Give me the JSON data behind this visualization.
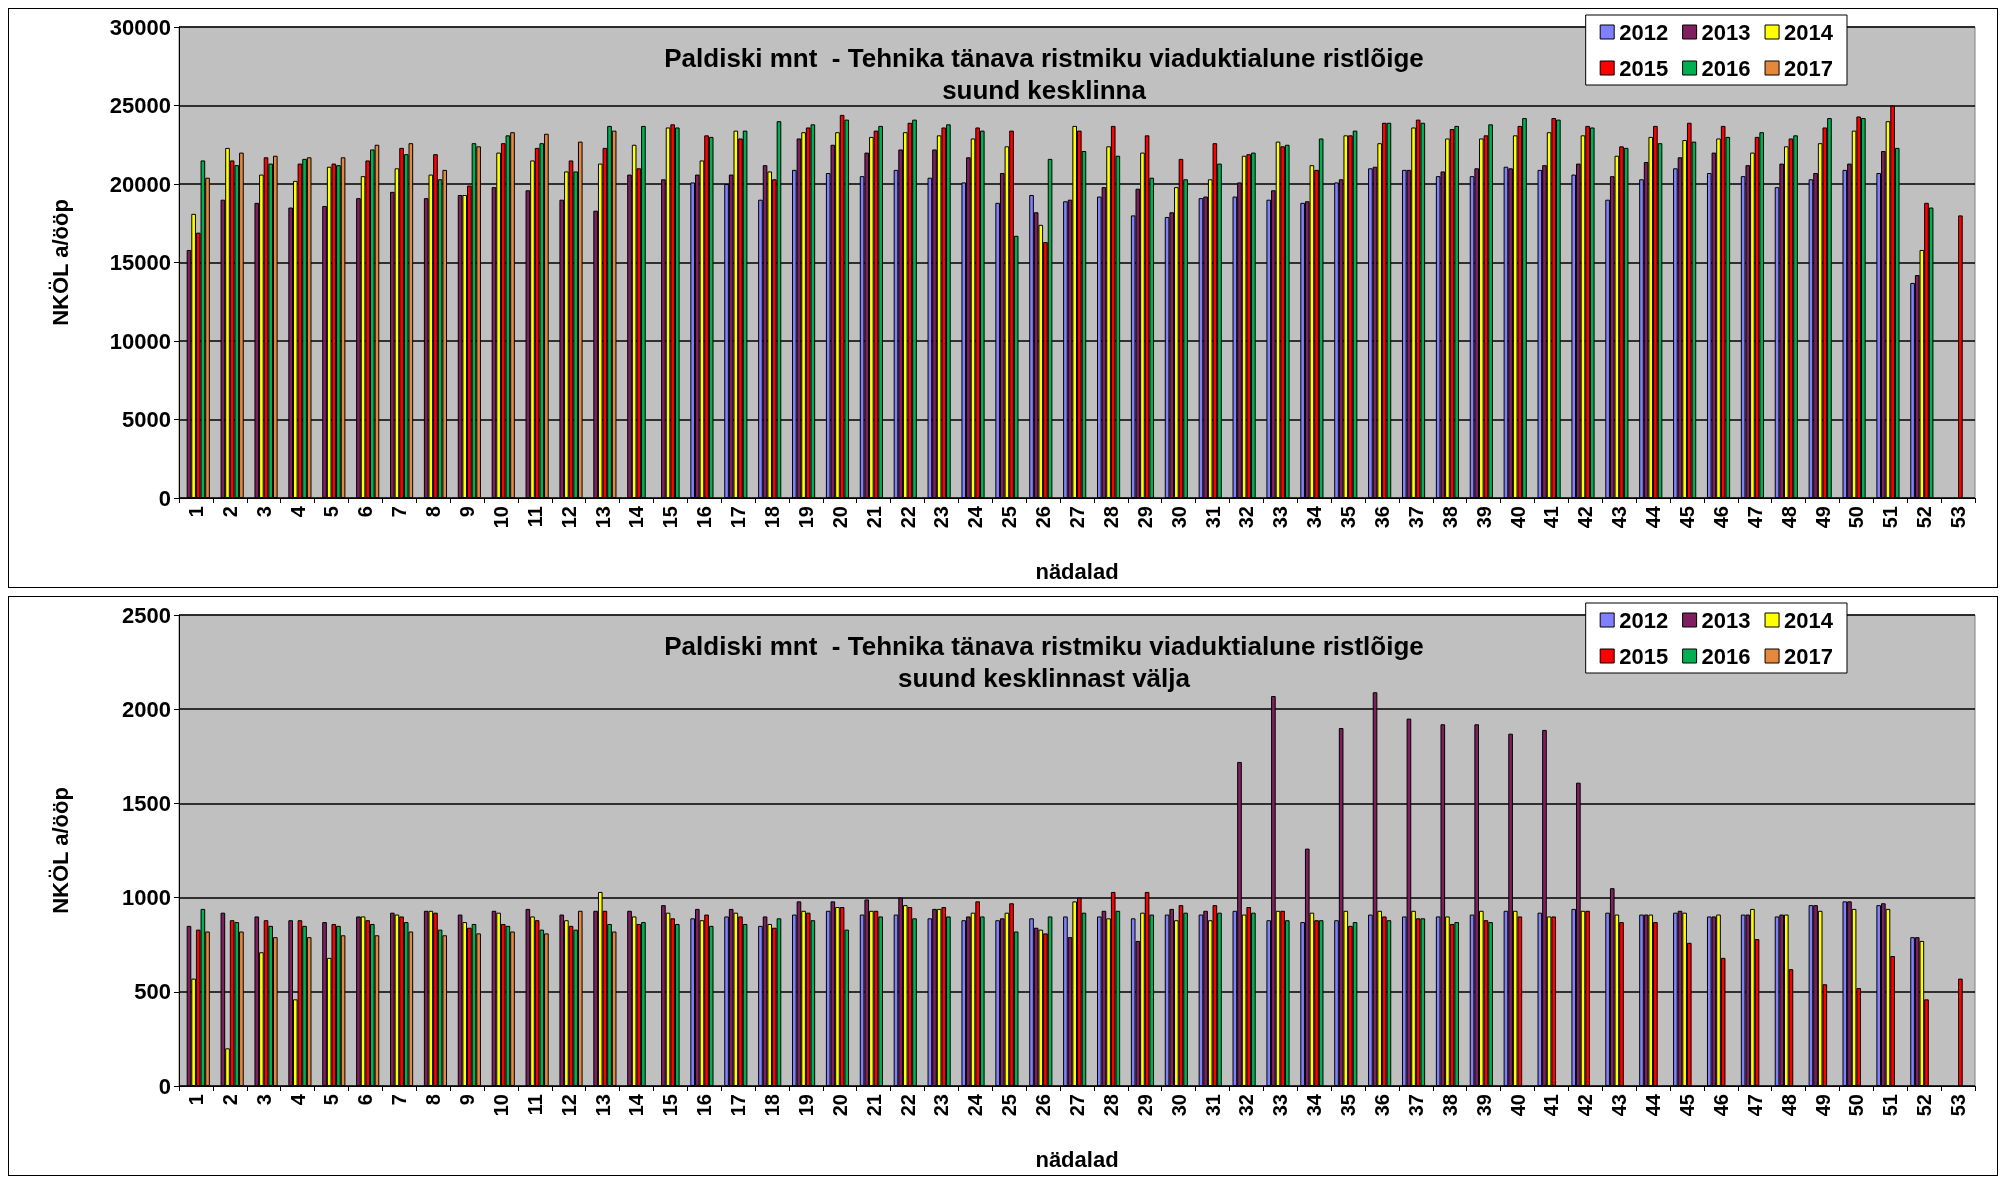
{
  "chart_data": [
    {
      "type": "bar",
      "title": "Paldiski mnt  - Tehnika tänava ristmiku viaduktialune ristlõige\nsuund kesklinna",
      "xlabel": "nädalad",
      "ylabel": "NKÖL a/ööp",
      "categories": [
        "1",
        "2",
        "3",
        "4",
        "5",
        "6",
        "7",
        "8",
        "9",
        "10",
        "11",
        "12",
        "13",
        "14",
        "15",
        "16",
        "17",
        "18",
        "19",
        "20",
        "21",
        "22",
        "23",
        "24",
        "25",
        "26",
        "27",
        "28",
        "29",
        "30",
        "31",
        "32",
        "33",
        "34",
        "35",
        "36",
        "37",
        "38",
        "39",
        "40",
        "41",
        "42",
        "43",
        "44",
        "45",
        "46",
        "47",
        "48",
        "49",
        "50",
        "51",
        "52",
        "53"
      ],
      "ylim": [
        0,
        30000
      ],
      "yticks": [
        0,
        5000,
        10000,
        15000,
        20000,
        25000,
        30000
      ],
      "grid": "y",
      "legend": "top right",
      "series": [
        {
          "name": "2012",
          "color": "#8080ff",
          "values": [
            null,
            null,
            null,
            null,
            null,
            null,
            null,
            null,
            null,
            null,
            null,
            null,
            null,
            null,
            null,
            20100,
            20000,
            19000,
            20900,
            20700,
            20500,
            20900,
            20400,
            20100,
            18800,
            19300,
            18900,
            19200,
            18000,
            17900,
            19100,
            19200,
            19000,
            18800,
            20100,
            21000,
            20900,
            20500,
            20500,
            21100,
            20900,
            20600,
            19000,
            20300,
            21000,
            20700,
            20500,
            19800,
            20300,
            20900,
            20700,
            13700,
            null
          ]
        },
        {
          "name": "2013",
          "color": "#7f1f5f",
          "values": [
            15800,
            19000,
            18800,
            18500,
            18600,
            19100,
            19500,
            19100,
            19300,
            19800,
            19600,
            19000,
            18300,
            20600,
            20300,
            20600,
            20600,
            21200,
            22900,
            22500,
            22000,
            22200,
            22200,
            21700,
            20700,
            18200,
            19000,
            19800,
            19700,
            18200,
            19200,
            20100,
            19600,
            18900,
            20300,
            21100,
            20900,
            20800,
            21000,
            21000,
            21200,
            21300,
            20500,
            21400,
            21700,
            22000,
            21200,
            21300,
            20700,
            21300,
            22100,
            14200,
            null
          ]
        },
        {
          "name": "2014",
          "color": "#ffff00",
          "values": [
            18100,
            22300,
            20600,
            20200,
            21100,
            20500,
            21000,
            20600,
            19300,
            22000,
            21500,
            20800,
            21300,
            22500,
            23600,
            21500,
            23400,
            20800,
            23300,
            23300,
            23000,
            23300,
            23100,
            22900,
            22400,
            17400,
            23700,
            22400,
            22000,
            19800,
            20300,
            21800,
            22700,
            21200,
            23100,
            22600,
            23600,
            22900,
            22900,
            23100,
            23300,
            23100,
            21800,
            23000,
            22800,
            22900,
            22000,
            22400,
            22600,
            23400,
            24000,
            15800,
            null
          ]
        },
        {
          "name": "2015",
          "color": "#ff0000",
          "values": [
            16900,
            21500,
            21700,
            21300,
            21300,
            21500,
            22300,
            21900,
            19900,
            22600,
            22300,
            21500,
            22300,
            21000,
            23800,
            23100,
            22900,
            20300,
            23600,
            24400,
            23400,
            23900,
            23600,
            23600,
            23400,
            16300,
            23400,
            23700,
            23100,
            21600,
            22600,
            21900,
            22400,
            20900,
            23100,
            23900,
            24100,
            23500,
            23100,
            23700,
            24200,
            23700,
            22400,
            23700,
            23900,
            23700,
            23000,
            22900,
            23600,
            24300,
            25000,
            18800,
            18000
          ]
        },
        {
          "name": "2016",
          "color": "#00b050",
          "values": [
            21500,
            21200,
            21300,
            21600,
            21200,
            22200,
            21900,
            20300,
            22600,
            23100,
            22600,
            20800,
            23700,
            23700,
            23600,
            23000,
            23400,
            24000,
            23800,
            24100,
            23700,
            24100,
            23800,
            23400,
            16700,
            21600,
            22100,
            21800,
            20400,
            20300,
            21300,
            22000,
            22500,
            22900,
            23400,
            23900,
            23900,
            23700,
            23800,
            24200,
            24100,
            23600,
            22300,
            22600,
            22700,
            23000,
            23300,
            23100,
            24200,
            24200,
            22300,
            18500,
            null
          ]
        },
        {
          "name": "2017",
          "color": "#e6883c",
          "values": [
            20400,
            22000,
            21800,
            21700,
            21700,
            22500,
            22600,
            20900,
            22400,
            23300,
            23200,
            22700,
            23400,
            null,
            null,
            null,
            null,
            null,
            null,
            null,
            null,
            null,
            null,
            null,
            null,
            null,
            null,
            null,
            null,
            null,
            null,
            null,
            null,
            null,
            null,
            null,
            null,
            null,
            null,
            null,
            null,
            null,
            null,
            null,
            null,
            null,
            null,
            null,
            null,
            null,
            null,
            null,
            null
          ]
        }
      ]
    },
    {
      "type": "bar",
      "title": "Paldiski mnt  - Tehnika tänava ristmiku viaduktialune ristlõige\nsuund kesklinnast välja",
      "xlabel": "nädalad",
      "ylabel": "NKÖL a/ööp",
      "categories": [
        "1",
        "2",
        "3",
        "4",
        "5",
        "6",
        "7",
        "8",
        "9",
        "10",
        "11",
        "12",
        "13",
        "14",
        "15",
        "16",
        "17",
        "18",
        "19",
        "20",
        "21",
        "22",
        "23",
        "24",
        "25",
        "26",
        "27",
        "28",
        "29",
        "30",
        "31",
        "32",
        "33",
        "34",
        "35",
        "36",
        "37",
        "38",
        "39",
        "40",
        "41",
        "42",
        "43",
        "44",
        "45",
        "46",
        "47",
        "48",
        "49",
        "50",
        "51",
        "52",
        "53"
      ],
      "ylim": [
        0,
        2500
      ],
      "yticks": [
        0,
        500,
        1000,
        1500,
        2000,
        2500
      ],
      "grid": "y",
      "legend": "top right",
      "series": [
        {
          "name": "2012",
          "color": "#8080ff",
          "values": [
            null,
            null,
            null,
            null,
            null,
            null,
            null,
            null,
            null,
            null,
            null,
            null,
            null,
            null,
            null,
            890,
            900,
            850,
            910,
            930,
            910,
            910,
            890,
            880,
            880,
            890,
            900,
            900,
            890,
            910,
            910,
            930,
            880,
            870,
            880,
            910,
            900,
            900,
            910,
            930,
            920,
            940,
            920,
            910,
            920,
            900,
            910,
            900,
            960,
            980,
            960,
            790,
            null
          ]
        },
        {
          "name": "2013",
          "color": "#7f1f5f",
          "values": [
            850,
            920,
            900,
            880,
            870,
            900,
            920,
            930,
            910,
            930,
            940,
            910,
            930,
            930,
            960,
            940,
            940,
            900,
            980,
            980,
            990,
            1000,
            940,
            900,
            890,
            840,
            790,
            930,
            770,
            940,
            930,
            1720,
            2070,
            1260,
            1900,
            2090,
            1950,
            1920,
            1920,
            1870,
            1890,
            1610,
            1050,
            910,
            930,
            900,
            910,
            910,
            960,
            980,
            970,
            790,
            null
          ]
        },
        {
          "name": "2014",
          "color": "#ffff00",
          "values": [
            570,
            200,
            710,
            460,
            680,
            900,
            910,
            930,
            870,
            920,
            900,
            880,
            1030,
            900,
            920,
            880,
            920,
            860,
            930,
            950,
            930,
            960,
            940,
            920,
            920,
            830,
            980,
            890,
            920,
            880,
            880,
            910,
            930,
            920,
            930,
            930,
            930,
            900,
            930,
            930,
            900,
            930,
            910,
            910,
            920,
            910,
            940,
            910,
            930,
            940,
            940,
            770,
            null
          ]
        },
        {
          "name": "2015",
          "color": "#ff0000",
          "values": [
            830,
            880,
            880,
            880,
            860,
            880,
            900,
            920,
            840,
            860,
            880,
            850,
            930,
            860,
            890,
            910,
            900,
            840,
            920,
            950,
            930,
            950,
            950,
            980,
            970,
            810,
            1000,
            1030,
            1030,
            960,
            960,
            950,
            930,
            880,
            850,
            900,
            890,
            860,
            880,
            900,
            900,
            930,
            870,
            870,
            760,
            680,
            780,
            620,
            540,
            520,
            690,
            460,
            570
          ]
        },
        {
          "name": "2016",
          "color": "#00b050",
          "values": [
            940,
            870,
            850,
            850,
            850,
            860,
            870,
            830,
            860,
            850,
            830,
            830,
            860,
            870,
            860,
            850,
            860,
            890,
            880,
            830,
            900,
            890,
            900,
            900,
            820,
            900,
            920,
            930,
            910,
            920,
            920,
            920,
            880,
            880,
            870,
            880,
            890,
            870,
            870,
            null,
            null,
            null,
            null,
            null,
            null,
            null,
            null,
            null,
            null,
            null,
            null,
            null,
            null
          ]
        },
        {
          "name": "2017",
          "color": "#e6883c",
          "values": [
            820,
            820,
            790,
            790,
            800,
            800,
            820,
            800,
            810,
            820,
            810,
            930,
            820,
            null,
            null,
            null,
            null,
            null,
            null,
            null,
            null,
            null,
            null,
            null,
            null,
            null,
            null,
            null,
            null,
            null,
            null,
            null,
            null,
            null,
            null,
            null,
            null,
            null,
            null,
            null,
            null,
            null,
            null,
            null,
            null,
            null,
            null,
            null,
            null,
            null,
            null,
            null,
            null
          ]
        }
      ]
    }
  ]
}
